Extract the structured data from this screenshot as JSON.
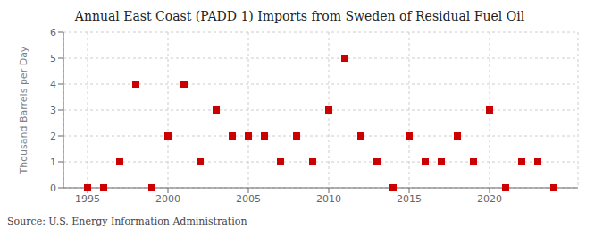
{
  "chart_data": {
    "type": "scatter",
    "title": "Annual East Coast (PADD 1) Imports from Sweden of Residual Fuel Oil",
    "ylabel": "Thousand Barrels per Day",
    "annotations": [
      "Source: U.S. Energy Information Administration"
    ],
    "x": [
      1995,
      1996,
      1997,
      1998,
      1999,
      2000,
      2001,
      2002,
      2003,
      2004,
      2005,
      2006,
      2007,
      2008,
      2009,
      2010,
      2011,
      2012,
      2013,
      2014,
      2015,
      2016,
      2017,
      2018,
      2019,
      2020,
      2021,
      2022,
      2023,
      2024
    ],
    "values": [
      0,
      0,
      1,
      4,
      0,
      2,
      4,
      1,
      3,
      2,
      2,
      2,
      1,
      2,
      1,
      3,
      5,
      2,
      1,
      0,
      2,
      1,
      1,
      2,
      1,
      3,
      0,
      1,
      1,
      0
    ],
    "color": "#cc0000",
    "marker": "square",
    "xlim": [
      1993.5,
      2025.5
    ],
    "xticks": [
      1995,
      2000,
      2005,
      2010,
      2015,
      2020
    ],
    "ylim": [
      0,
      6
    ],
    "yticks": [
      0,
      1,
      2,
      3,
      4,
      5,
      6
    ],
    "grid": true
  }
}
